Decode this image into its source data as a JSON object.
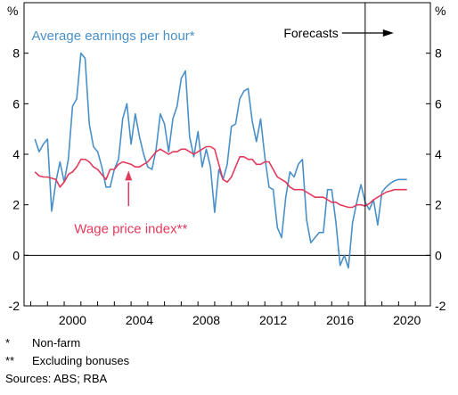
{
  "chart_data": {
    "type": "line",
    "unit_left": "%",
    "unit_right": "%",
    "ylim": [
      -2,
      10
    ],
    "yticks": [
      -2,
      0,
      2,
      4,
      6,
      8
    ],
    "xlim": [
      1997.6,
      2021.9
    ],
    "xticks": [
      2000,
      2004,
      2008,
      2012,
      2016,
      2020
    ],
    "grid": false,
    "forecast_start": 2018.0,
    "forecast_label": "Forecasts",
    "series": [
      {
        "name": "Average earnings per hour*",
        "color": "#4a90c8",
        "x": [
          1998.25,
          1998.5,
          1998.75,
          1999.0,
          1999.25,
          1999.5,
          1999.75,
          2000.0,
          2000.25,
          2000.5,
          2000.75,
          2001.0,
          2001.25,
          2001.5,
          2001.75,
          2002.0,
          2002.25,
          2002.5,
          2002.75,
          2003.0,
          2003.25,
          2003.5,
          2003.75,
          2004.0,
          2004.25,
          2004.5,
          2004.75,
          2005.0,
          2005.25,
          2005.5,
          2005.75,
          2006.0,
          2006.25,
          2006.5,
          2006.75,
          2007.0,
          2007.25,
          2007.5,
          2007.75,
          2008.0,
          2008.25,
          2008.5,
          2008.75,
          2009.0,
          2009.25,
          2009.5,
          2009.75,
          2010.0,
          2010.25,
          2010.5,
          2010.75,
          2011.0,
          2011.25,
          2011.5,
          2011.75,
          2012.0,
          2012.25,
          2012.5,
          2012.75,
          2013.0,
          2013.25,
          2013.5,
          2013.75,
          2014.0,
          2014.25,
          2014.5,
          2014.75,
          2015.0,
          2015.25,
          2015.5,
          2015.75,
          2016.0,
          2016.25,
          2016.5,
          2016.75,
          2017.0,
          2017.25,
          2017.5,
          2017.75,
          2018.0,
          2018.25,
          2018.5,
          2018.75,
          2019.0,
          2019.25,
          2019.5,
          2019.75,
          2020.0,
          2020.25,
          2020.5
        ],
        "values": [
          4.6,
          4.1,
          4.4,
          4.6,
          1.75,
          2.9,
          3.7,
          2.9,
          3.8,
          5.9,
          6.2,
          8.0,
          7.8,
          5.2,
          4.3,
          4.1,
          3.5,
          2.7,
          2.7,
          3.4,
          3.8,
          5.4,
          6.0,
          4.4,
          5.6,
          4.7,
          4.0,
          3.5,
          3.4,
          4.2,
          5.6,
          5.2,
          4.1,
          5.4,
          5.9,
          7.0,
          7.3,
          4.7,
          3.9,
          4.9,
          3.5,
          4.2,
          3.5,
          1.7,
          3.4,
          3.0,
          3.6,
          5.1,
          5.2,
          6.2,
          6.5,
          6.6,
          5.3,
          4.5,
          5.4,
          3.9,
          2.7,
          2.6,
          1.1,
          0.7,
          2.3,
          3.3,
          3.1,
          3.6,
          3.8,
          1.4,
          0.5,
          0.7,
          0.9,
          0.9,
          2.6,
          2.6,
          1.3,
          -0.4,
          0.0,
          -0.5,
          1.3,
          2.1,
          2.8,
          2.1,
          1.8,
          2.2,
          1.2,
          2.5,
          2.7,
          2.85,
          2.95,
          3.0,
          3.0,
          3.0
        ]
      },
      {
        "name": "Wage price index**",
        "color": "#e23a5c",
        "x": [
          1998.25,
          1998.5,
          1998.75,
          1999.0,
          1999.25,
          1999.5,
          1999.75,
          2000.0,
          2000.25,
          2000.5,
          2000.75,
          2001.0,
          2001.25,
          2001.5,
          2001.75,
          2002.0,
          2002.25,
          2002.5,
          2002.75,
          2003.0,
          2003.25,
          2003.5,
          2003.75,
          2004.0,
          2004.25,
          2004.5,
          2004.75,
          2005.0,
          2005.25,
          2005.5,
          2005.75,
          2006.0,
          2006.25,
          2006.5,
          2006.75,
          2007.0,
          2007.25,
          2007.5,
          2007.75,
          2008.0,
          2008.25,
          2008.5,
          2008.75,
          2009.0,
          2009.25,
          2009.5,
          2009.75,
          2010.0,
          2010.25,
          2010.5,
          2010.75,
          2011.0,
          2011.25,
          2011.5,
          2011.75,
          2012.0,
          2012.25,
          2012.5,
          2012.75,
          2013.0,
          2013.25,
          2013.5,
          2013.75,
          2014.0,
          2014.25,
          2014.5,
          2014.75,
          2015.0,
          2015.25,
          2015.5,
          2015.75,
          2016.0,
          2016.25,
          2016.5,
          2016.75,
          2017.0,
          2017.25,
          2017.5,
          2017.75,
          2018.0,
          2018.25,
          2018.5,
          2018.75,
          2019.0,
          2019.25,
          2019.5,
          2019.75,
          2020.0,
          2020.25,
          2020.5
        ],
        "values": [
          3.3,
          3.15,
          3.1,
          3.1,
          3.05,
          3.0,
          2.7,
          2.9,
          3.2,
          3.3,
          3.5,
          3.8,
          3.8,
          3.7,
          3.5,
          3.4,
          3.2,
          3.0,
          3.4,
          3.4,
          3.6,
          3.7,
          3.65,
          3.6,
          3.5,
          3.5,
          3.6,
          3.7,
          3.9,
          4.1,
          4.2,
          4.1,
          4.0,
          4.1,
          4.1,
          4.2,
          4.2,
          4.1,
          4.0,
          4.1,
          4.2,
          4.3,
          4.3,
          4.2,
          3.6,
          3.0,
          2.9,
          3.1,
          3.5,
          3.9,
          3.9,
          3.8,
          3.8,
          3.6,
          3.6,
          3.7,
          3.7,
          3.4,
          3.1,
          3.0,
          2.9,
          2.7,
          2.6,
          2.6,
          2.6,
          2.5,
          2.4,
          2.3,
          2.3,
          2.3,
          2.2,
          2.1,
          2.1,
          2.0,
          1.95,
          1.9,
          1.9,
          2.0,
          2.0,
          1.95,
          2.05,
          2.2,
          2.3,
          2.4,
          2.5,
          2.55,
          2.6,
          2.6,
          2.6,
          2.6
        ]
      }
    ],
    "annotations": [
      {
        "text": "Average earnings per hour*",
        "series": 0
      },
      {
        "text": "Wage price index**",
        "series": 1
      },
      {
        "text": "Forecasts"
      }
    ]
  },
  "notes": [
    {
      "mark": "*",
      "text": "Non-farm"
    },
    {
      "mark": "**",
      "text": "Excluding bonuses"
    }
  ],
  "sources": "Sources: ABS; RBA"
}
